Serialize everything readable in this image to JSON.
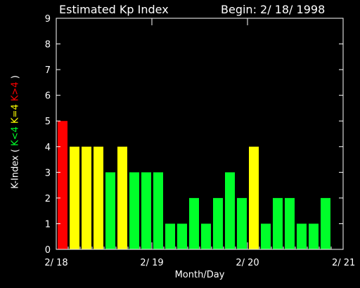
{
  "chart_data": {
    "type": "bar",
    "title": "Estimated Kp Index",
    "subtitle": "Begin: 2/ 18/ 1998",
    "xlabel": "Month/Day",
    "ylabel": {
      "prefix": "K-Index (",
      "low": "K<4",
      "mid": "K=4",
      "high": "K>4",
      "suffix": ")"
    },
    "ylim": [
      0,
      9
    ],
    "yticks": [
      "0",
      "1",
      "2",
      "3",
      "4",
      "5",
      "6",
      "7",
      "8",
      "9"
    ],
    "xlim": [
      0,
      3
    ],
    "xticks": [
      {
        "label": "2/ 18",
        "pos": 0
      },
      {
        "label": "2/ 19",
        "pos": 1
      },
      {
        "label": "2/ 20",
        "pos": 2
      },
      {
        "label": "2/ 21",
        "pos": 3
      }
    ],
    "bars_per_day": 8,
    "values": [
      5,
      4,
      4,
      4,
      3,
      4,
      3,
      3,
      3,
      1,
      1,
      2,
      1,
      2,
      3,
      2,
      4,
      1,
      2,
      2,
      1,
      1,
      2
    ],
    "colors": {
      "low": "#00ff2a",
      "mid": "#ffff00",
      "high": "#ff0000",
      "axis": "#ffffff",
      "background": "#000000"
    }
  }
}
